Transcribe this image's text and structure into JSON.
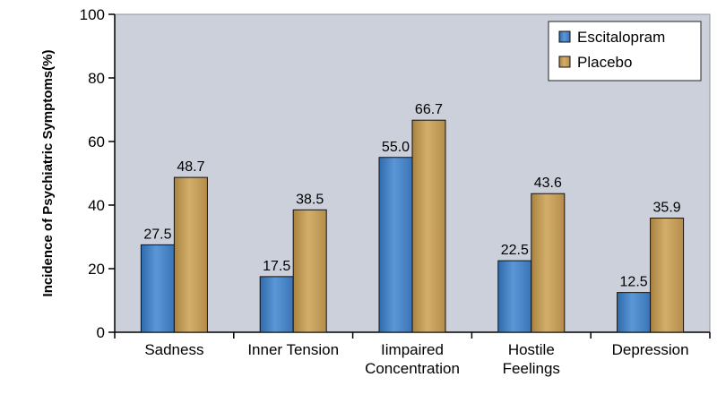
{
  "colors": {
    "plot_background": "#cbd0db",
    "escitalopram": "#4a86c8",
    "placebo": "#c8a15a",
    "axis": "#000000"
  },
  "chart_data": {
    "type": "bar",
    "title": "",
    "xlabel": "",
    "ylabel": "Incidence of Psychiatric Symptoms(%)",
    "ylim": [
      0,
      100
    ],
    "yticks": [
      0,
      20,
      40,
      60,
      80,
      100
    ],
    "grid": false,
    "legend_position": "top-right",
    "categories": [
      [
        "Sadness"
      ],
      [
        "Inner Tension"
      ],
      [
        "Iimpaired",
        "Concentration"
      ],
      [
        "Hostile",
        "Feelings"
      ],
      [
        "Depression"
      ]
    ],
    "series": [
      {
        "name": "Escitalopram",
        "values": [
          27.5,
          17.5,
          55.0,
          22.5,
          12.5
        ],
        "labels": [
          "27.5",
          "17.5",
          "55.0",
          "22.5",
          "12.5"
        ]
      },
      {
        "name": "Placebo",
        "values": [
          48.7,
          38.5,
          66.7,
          43.6,
          35.9
        ],
        "labels": [
          "48.7",
          "38.5",
          "66.7",
          "43.6",
          "35.9"
        ]
      }
    ]
  }
}
